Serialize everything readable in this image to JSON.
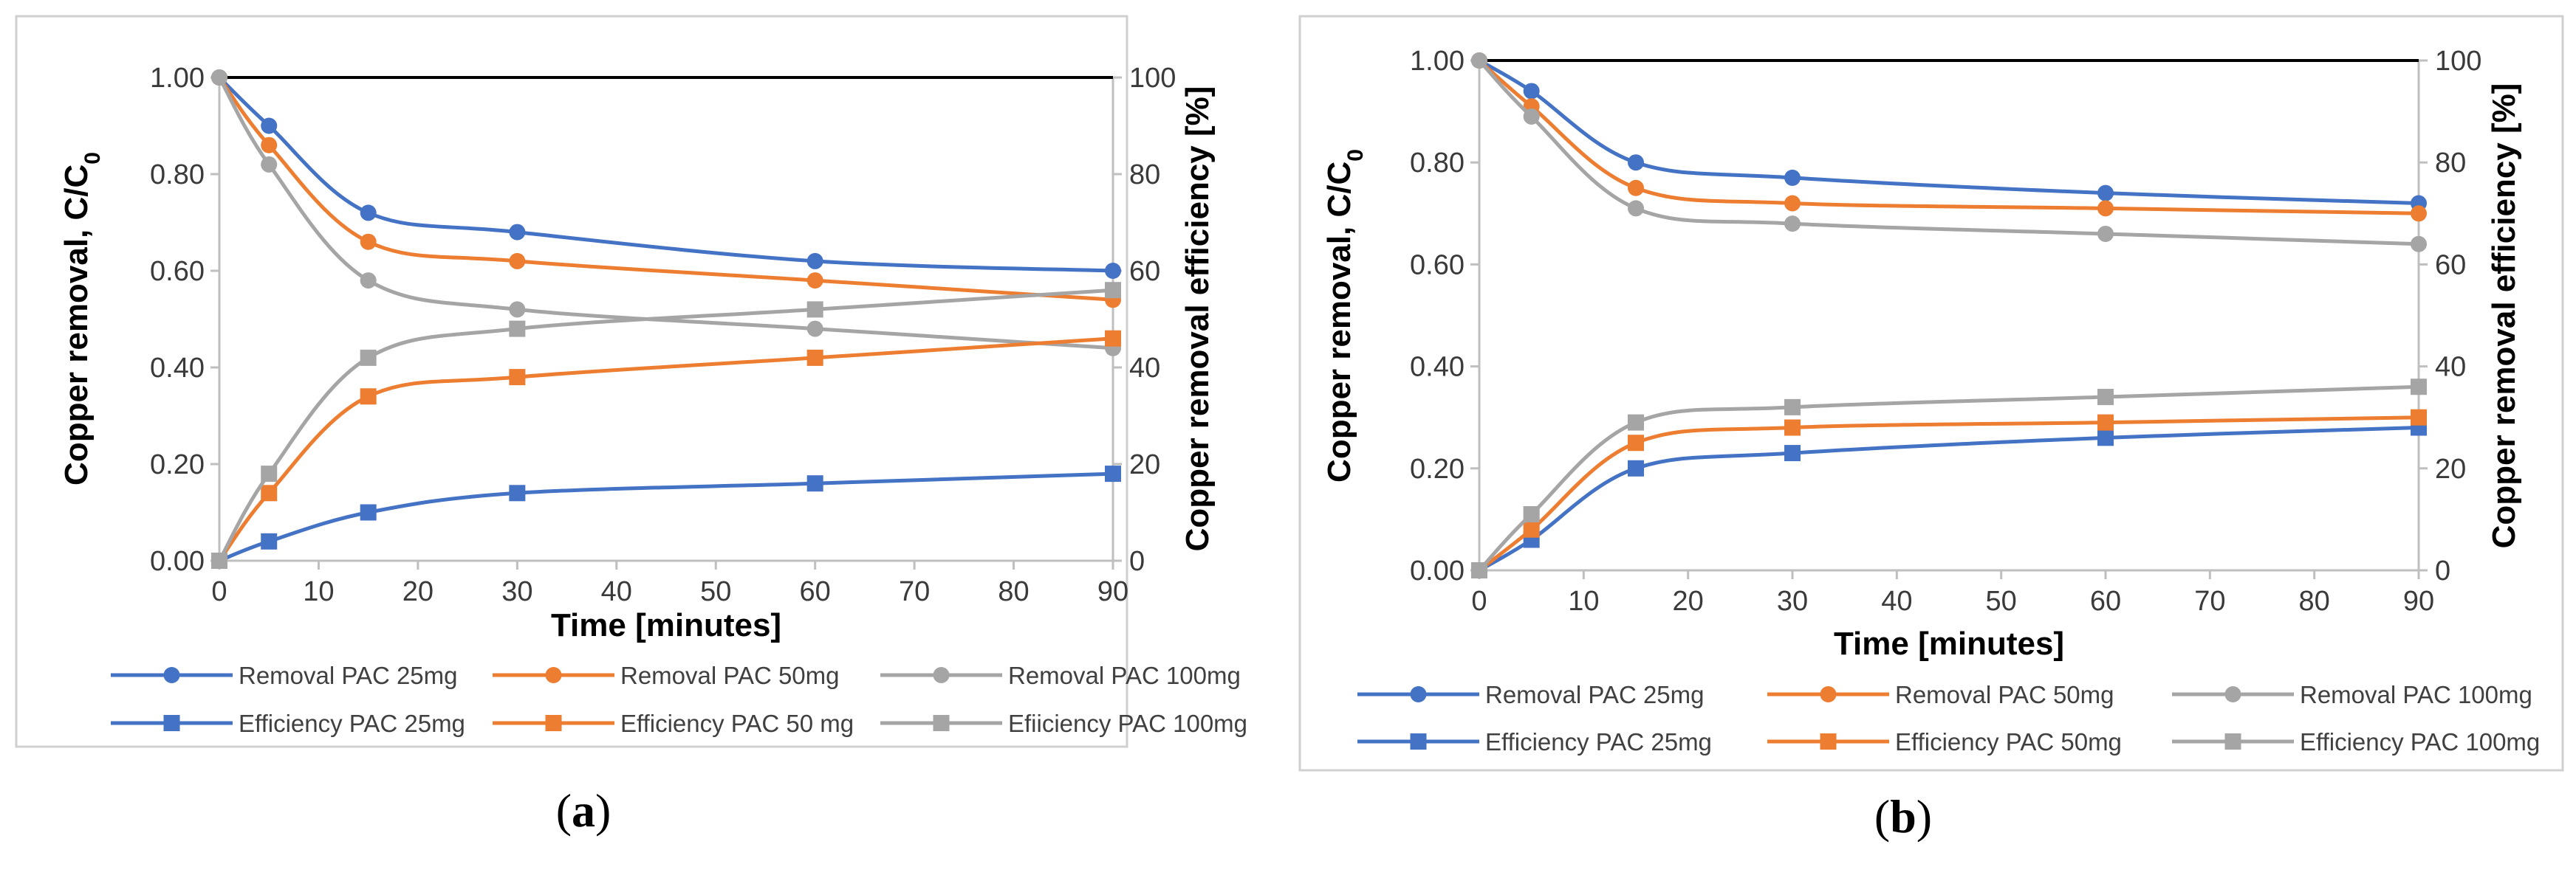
{
  "chart_data": [
    {
      "type": "line",
      "panel_label": "a",
      "caption": {
        "open": "(",
        "label": "a",
        "close": ")"
      },
      "xlabel": "Time [minutes]",
      "ylabel_left_prefix": "Copper removal, C/C",
      "ylabel_left_subscript": "0",
      "ylabel_right": "Copper removal efficiency [%]",
      "xlim": [
        0,
        90
      ],
      "xticks": [
        "0",
        "10",
        "20",
        "30",
        "40",
        "50",
        "60",
        "70",
        "80",
        "90"
      ],
      "ylim_left": [
        0,
        1
      ],
      "yticks_left": [
        "0.00",
        "0.20",
        "0.40",
        "0.60",
        "0.80",
        "1.00"
      ],
      "ylim_right": [
        0,
        100
      ],
      "yticks_right": [
        "0",
        "20",
        "40",
        "60",
        "80",
        "100"
      ],
      "reference_line": 1.0,
      "x": [
        0,
        5,
        15,
        30,
        60,
        90
      ],
      "series": [
        {
          "name": "Removal PAC 25mg",
          "axis": "left",
          "marker": "circle",
          "color": "#4472C4",
          "values": [
            1.0,
            0.9,
            0.72,
            0.68,
            0.62,
            0.6
          ]
        },
        {
          "name": "Removal PAC 50mg",
          "axis": "left",
          "marker": "circle",
          "color": "#ED7D31",
          "values": [
            1.0,
            0.86,
            0.66,
            0.62,
            0.58,
            0.54
          ]
        },
        {
          "name": "Removal PAC 100mg",
          "axis": "left",
          "marker": "circle",
          "color": "#A5A5A5",
          "values": [
            1.0,
            0.82,
            0.58,
            0.52,
            0.48,
            0.44
          ]
        },
        {
          "name": "Efficiency PAC 25mg",
          "axis": "right",
          "marker": "square",
          "color": "#4472C4",
          "values": [
            0,
            4,
            10,
            14,
            16,
            18
          ]
        },
        {
          "name": "Efficiency PAC 50 mg",
          "axis": "right",
          "marker": "square",
          "color": "#ED7D31",
          "values": [
            0,
            14,
            34,
            38,
            42,
            46
          ]
        },
        {
          "name": "Efiiciency PAC 100mg",
          "axis": "right",
          "marker": "square",
          "color": "#A5A5A5",
          "values": [
            0,
            18,
            42,
            48,
            52,
            56
          ]
        }
      ]
    },
    {
      "type": "line",
      "panel_label": "b",
      "caption": {
        "open": "(",
        "label": "b",
        "close": ")"
      },
      "xlabel": "Time [minutes]",
      "ylabel_left_prefix": "Copper removal, C/C",
      "ylabel_left_subscript": "0",
      "ylabel_right": "Copper removal efficiency [%]",
      "xlim": [
        0,
        90
      ],
      "xticks": [
        "0",
        "10",
        "20",
        "30",
        "40",
        "50",
        "60",
        "70",
        "80",
        "90"
      ],
      "ylim_left": [
        0,
        1
      ],
      "yticks_left": [
        "0.00",
        "0.20",
        "0.40",
        "0.60",
        "0.80",
        "1.00"
      ],
      "ylim_right": [
        0,
        100
      ],
      "yticks_right": [
        "0",
        "20",
        "40",
        "60",
        "80",
        "100"
      ],
      "reference_line": 1.0,
      "x": [
        0,
        5,
        15,
        30,
        60,
        90
      ],
      "series": [
        {
          "name": "Removal PAC 25mg",
          "axis": "left",
          "marker": "circle",
          "color": "#4472C4",
          "values": [
            1.0,
            0.94,
            0.8,
            0.77,
            0.74,
            0.72
          ]
        },
        {
          "name": "Removal PAC 50mg",
          "axis": "left",
          "marker": "circle",
          "color": "#ED7D31",
          "values": [
            1.0,
            0.91,
            0.75,
            0.72,
            0.71,
            0.7
          ]
        },
        {
          "name": "Removal PAC 100mg",
          "axis": "left",
          "marker": "circle",
          "color": "#A5A5A5",
          "values": [
            1.0,
            0.89,
            0.71,
            0.68,
            0.66,
            0.64
          ]
        },
        {
          "name": "Efficiency PAC 25mg",
          "axis": "right",
          "marker": "square",
          "color": "#4472C4",
          "values": [
            0,
            6,
            20,
            23,
            26,
            28
          ]
        },
        {
          "name": "Efficiency PAC 50mg",
          "axis": "right",
          "marker": "square",
          "color": "#ED7D31",
          "values": [
            0,
            8,
            25,
            28,
            29,
            30
          ]
        },
        {
          "name": "Efficiency PAC 100mg",
          "axis": "right",
          "marker": "square",
          "color": "#A5A5A5",
          "values": [
            0,
            11,
            29,
            32,
            34,
            36
          ]
        }
      ]
    }
  ]
}
